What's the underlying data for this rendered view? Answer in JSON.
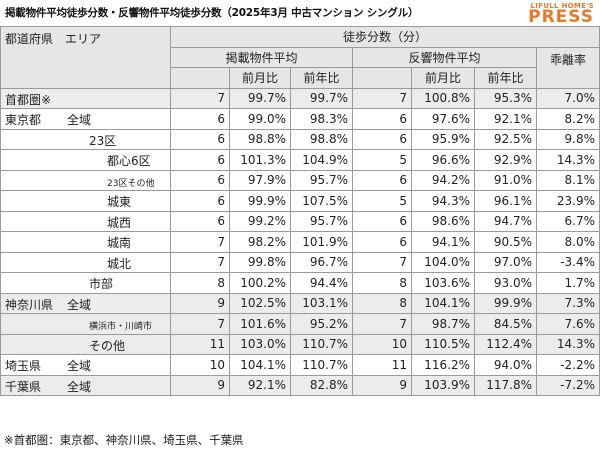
{
  "header": {
    "title": "掲載物件平均徒歩分数・反響物件平均徒歩分数（2025年3月 中古マンション シングル）",
    "logo_top": "LIFULL HOME'S",
    "logo_main": "PRESS"
  },
  "table": {
    "col_region": "都道府県　エリア",
    "col_walk": "徒歩分数（分）",
    "col_listed": "掲載物件平均",
    "col_inquiry": "反響物件平均",
    "col_gap": "乖離率",
    "col_mom": "前月比",
    "col_yoy": "前年比",
    "rows": [
      {
        "pref": "首都圏※",
        "area": "",
        "listed": "7",
        "listed_mom": "99.7%",
        "listed_yoy": "99.7%",
        "inq": "7",
        "inq_mom": "100.8%",
        "inq_yoy": "95.3%",
        "gap": "7.0%"
      },
      {
        "pref": "東京都",
        "area": "全域",
        "listed": "6",
        "listed_mom": "99.0%",
        "listed_yoy": "98.3%",
        "inq": "6",
        "inq_mom": "97.6%",
        "inq_yoy": "92.1%",
        "gap": "8.2%"
      },
      {
        "pref": "",
        "area": "23区",
        "listed": "6",
        "listed_mom": "98.8%",
        "listed_yoy": "98.8%",
        "inq": "6",
        "inq_mom": "95.9%",
        "inq_yoy": "92.5%",
        "gap": "9.8%"
      },
      {
        "pref": "",
        "area": "都心6区",
        "listed": "6",
        "listed_mom": "101.3%",
        "listed_yoy": "104.9%",
        "inq": "5",
        "inq_mom": "96.6%",
        "inq_yoy": "92.9%",
        "gap": "14.3%"
      },
      {
        "pref": "",
        "area": "23区その他",
        "listed": "6",
        "listed_mom": "97.9%",
        "listed_yoy": "95.7%",
        "inq": "6",
        "inq_mom": "94.2%",
        "inq_yoy": "91.0%",
        "gap": "8.1%"
      },
      {
        "pref": "",
        "area": "城東",
        "listed": "6",
        "listed_mom": "99.9%",
        "listed_yoy": "107.5%",
        "inq": "5",
        "inq_mom": "94.3%",
        "inq_yoy": "96.1%",
        "gap": "23.9%"
      },
      {
        "pref": "",
        "area": "城西",
        "listed": "6",
        "listed_mom": "99.2%",
        "listed_yoy": "95.7%",
        "inq": "6",
        "inq_mom": "98.6%",
        "inq_yoy": "94.7%",
        "gap": "6.7%"
      },
      {
        "pref": "",
        "area": "城南",
        "listed": "7",
        "listed_mom": "98.2%",
        "listed_yoy": "101.9%",
        "inq": "6",
        "inq_mom": "94.1%",
        "inq_yoy": "90.5%",
        "gap": "8.0%"
      },
      {
        "pref": "",
        "area": "城北",
        "listed": "7",
        "listed_mom": "99.8%",
        "listed_yoy": "96.7%",
        "inq": "7",
        "inq_mom": "104.0%",
        "inq_yoy": "97.0%",
        "gap": "-3.4%"
      },
      {
        "pref": "",
        "area": "市部",
        "listed": "8",
        "listed_mom": "100.2%",
        "listed_yoy": "94.4%",
        "inq": "8",
        "inq_mom": "103.6%",
        "inq_yoy": "93.0%",
        "gap": "1.7%"
      },
      {
        "pref": "神奈川県",
        "area": "全域",
        "listed": "9",
        "listed_mom": "102.5%",
        "listed_yoy": "103.1%",
        "inq": "8",
        "inq_mom": "104.1%",
        "inq_yoy": "99.9%",
        "gap": "7.3%"
      },
      {
        "pref": "",
        "area": "横浜市・川崎市",
        "listed": "7",
        "listed_mom": "101.6%",
        "listed_yoy": "95.2%",
        "inq": "7",
        "inq_mom": "98.7%",
        "inq_yoy": "84.5%",
        "gap": "7.6%"
      },
      {
        "pref": "",
        "area": "その他",
        "listed": "11",
        "listed_mom": "103.0%",
        "listed_yoy": "110.7%",
        "inq": "10",
        "inq_mom": "110.5%",
        "inq_yoy": "112.4%",
        "gap": "14.3%"
      },
      {
        "pref": "埼玉県",
        "area": "全域",
        "listed": "10",
        "listed_mom": "104.1%",
        "listed_yoy": "110.7%",
        "inq": "11",
        "inq_mom": "116.2%",
        "inq_yoy": "94.0%",
        "gap": "-2.2%"
      },
      {
        "pref": "千葉県",
        "area": "全域",
        "listed": "9",
        "listed_mom": "92.1%",
        "listed_yoy": "82.8%",
        "inq": "9",
        "inq_mom": "103.9%",
        "inq_yoy": "117.8%",
        "gap": "-7.2%"
      }
    ]
  },
  "footnote": "※首都圏：東京都、神奈川県、埼玉県、千葉県"
}
